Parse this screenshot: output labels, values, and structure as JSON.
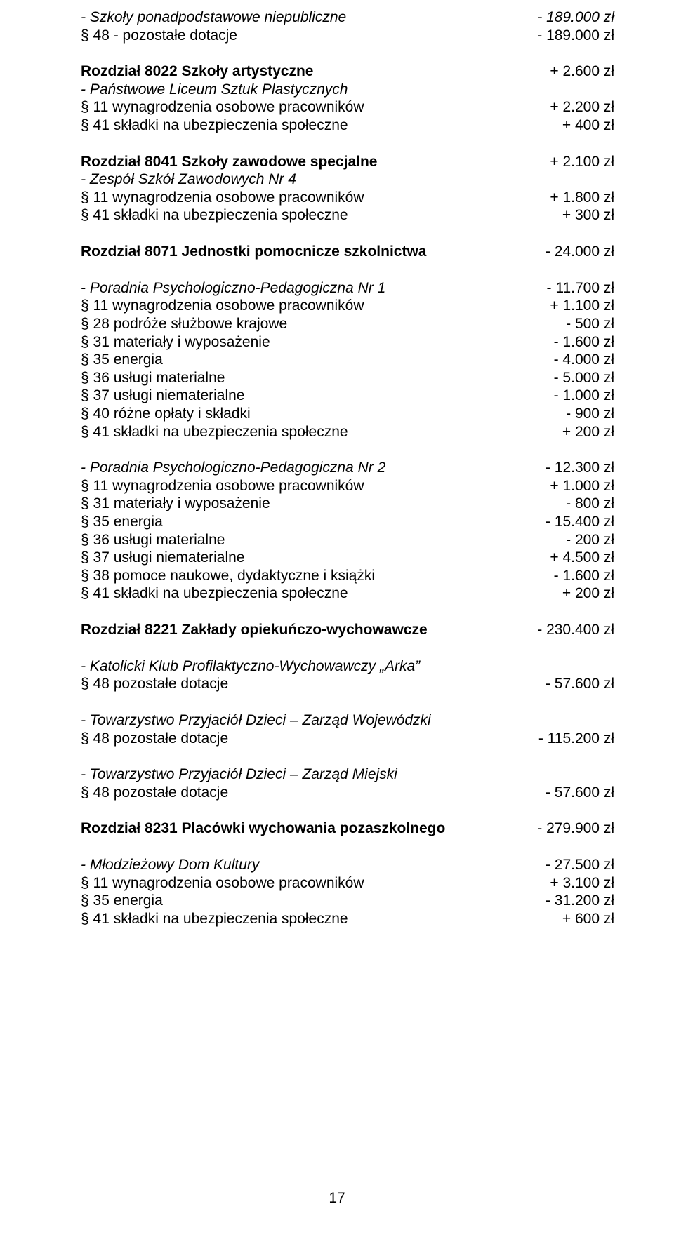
{
  "lines": [
    {
      "l": "- Szkoły ponadpodstawowe niepubliczne",
      "r": "- 189.000 zł",
      "cls": "italic"
    },
    {
      "l": "§ 48 - pozostałe dotacje",
      "r": "- 189.000 zł"
    },
    {
      "type": "spacer"
    },
    {
      "l": "Rozdział 8022 Szkoły artystyczne",
      "r": "+ 2.600 zł",
      "clsL": "bold"
    },
    {
      "l": "- Państwowe Liceum Sztuk Plastycznych",
      "clsL": "italic"
    },
    {
      "l": "§ 11 wynagrodzenia osobowe pracowników",
      "r": "+ 2.200 zł"
    },
    {
      "l": "§ 41 składki na ubezpieczenia społeczne",
      "r": "+ 400 zł"
    },
    {
      "type": "spacer"
    },
    {
      "l": "Rozdział 8041 Szkoły zawodowe specjalne",
      "r": "+ 2.100 zł",
      "clsL": "bold"
    },
    {
      "l": "- Zespół Szkół Zawodowych Nr 4",
      "clsL": "italic"
    },
    {
      "l": "§ 11 wynagrodzenia osobowe pracowników",
      "r": "+ 1.800 zł"
    },
    {
      "l": "§ 41 składki na ubezpieczenia społeczne",
      "r": "+ 300 zł"
    },
    {
      "type": "spacer"
    },
    {
      "l": "Rozdział 8071 Jednostki pomocnicze szkolnictwa",
      "r": "- 24.000 zł",
      "clsL": "bold"
    },
    {
      "type": "spacer"
    },
    {
      "l": "- Poradnia Psychologiczno-Pedagogiczna Nr 1",
      "r": "- 11.700 zł",
      "clsL": "italic"
    },
    {
      "l": "§ 11 wynagrodzenia osobowe pracowników",
      "r": "+ 1.100 zł"
    },
    {
      "l": "§ 28 podróże służbowe krajowe",
      "r": "- 500 zł"
    },
    {
      "l": "§ 31 materiały i wyposażenie",
      "r": "- 1.600 zł"
    },
    {
      "l": "§ 35 energia",
      "r": "- 4.000 zł"
    },
    {
      "l": "§ 36 usługi materialne",
      "r": "- 5.000 zł"
    },
    {
      "l": "§ 37 usługi niematerialne",
      "r": "- 1.000 zł"
    },
    {
      "l": "§ 40 różne opłaty i składki",
      "r": "- 900 zł"
    },
    {
      "l": "§ 41 składki na ubezpieczenia społeczne",
      "r": "+ 200 zł"
    },
    {
      "type": "spacer"
    },
    {
      "l": "- Poradnia Psychologiczno-Pedagogiczna Nr 2",
      "r": "- 12.300 zł",
      "clsL": "italic"
    },
    {
      "l": "§ 11 wynagrodzenia osobowe pracowników",
      "r": "+ 1.000 zł"
    },
    {
      "l": "§ 31 materiały i wyposażenie",
      "r": "- 800 zł"
    },
    {
      "l": "§ 35 energia",
      "r": "- 15.400 zł"
    },
    {
      "l": "§ 36 usługi materialne",
      "r": "- 200 zł"
    },
    {
      "l": "§ 37 usługi niematerialne",
      "r": "+ 4.500 zł"
    },
    {
      "l": "§ 38 pomoce naukowe, dydaktyczne i książki",
      "r": "- 1.600 zł"
    },
    {
      "l": "§ 41 składki na ubezpieczenia społeczne",
      "r": "+ 200 zł"
    },
    {
      "type": "spacer"
    },
    {
      "l": "Rozdział 8221 Zakłady opiekuńczo-wychowawcze",
      "r": "- 230.400 zł",
      "clsL": "bold"
    },
    {
      "type": "spacer"
    },
    {
      "l": "- Katolicki Klub Profilaktyczno-Wychowawczy „Arka”",
      "clsL": "italic"
    },
    {
      "l": "§ 48 pozostałe dotacje",
      "r": "- 57.600 zł"
    },
    {
      "type": "spacer"
    },
    {
      "l": "- Towarzystwo Przyjaciół Dzieci – Zarząd Wojewódzki",
      "clsL": "italic"
    },
    {
      "l": "§ 48 pozostałe dotacje",
      "r": "- 115.200 zł"
    },
    {
      "type": "spacer"
    },
    {
      "l": "- Towarzystwo Przyjaciół Dzieci – Zarząd Miejski",
      "clsL": "italic"
    },
    {
      "l": "§ 48 pozostałe dotacje",
      "r": "- 57.600 zł"
    },
    {
      "type": "spacer"
    },
    {
      "l": "Rozdział 8231 Placówki wychowania pozaszkolnego",
      "r": "- 279.900 zł",
      "clsL": "bold"
    },
    {
      "type": "spacer"
    },
    {
      "l": "- Młodzieżowy Dom Kultury",
      "r": "- 27.500 zł",
      "clsL": "italic"
    },
    {
      "l": "§ 11 wynagrodzenia osobowe pracowników",
      "r": "+ 3.100 zł"
    },
    {
      "l": "§ 35 energia",
      "r": "- 31.200 zł"
    },
    {
      "l": "§ 41 składki na ubezpieczenia społeczne",
      "r": "+ 600 zł"
    }
  ],
  "pageNumber": "17"
}
